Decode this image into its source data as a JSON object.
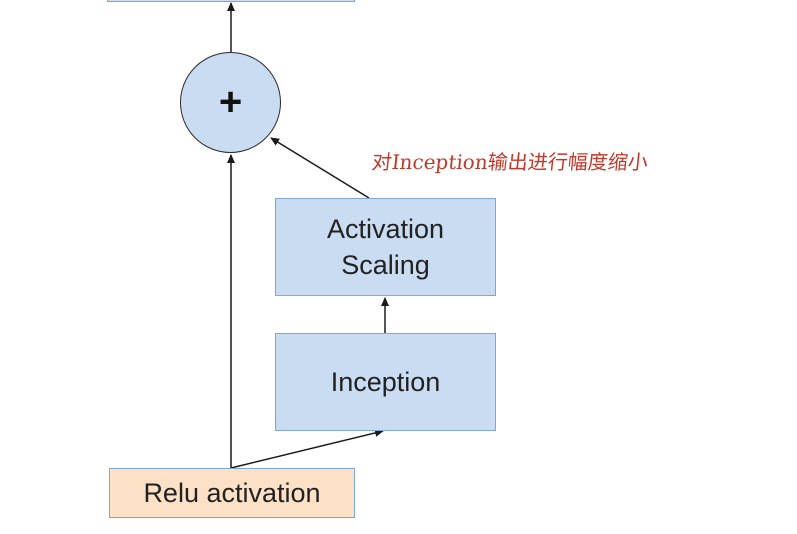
{
  "nodes": {
    "activation_scaling": {
      "line1": "Activation",
      "line2": "Scaling"
    },
    "inception": {
      "label": "Inception"
    },
    "relu": {
      "label": "Relu activation"
    },
    "adder": {
      "symbol": "+"
    }
  },
  "annotation": {
    "text": "对Inception输出进行幅度缩小",
    "color": "#c0392b"
  },
  "colors": {
    "box_fill": "#c9dcf2",
    "box_border": "#7ea6d8",
    "relu_fill": "#fce1c6",
    "arrow": "#1a1a1a"
  }
}
